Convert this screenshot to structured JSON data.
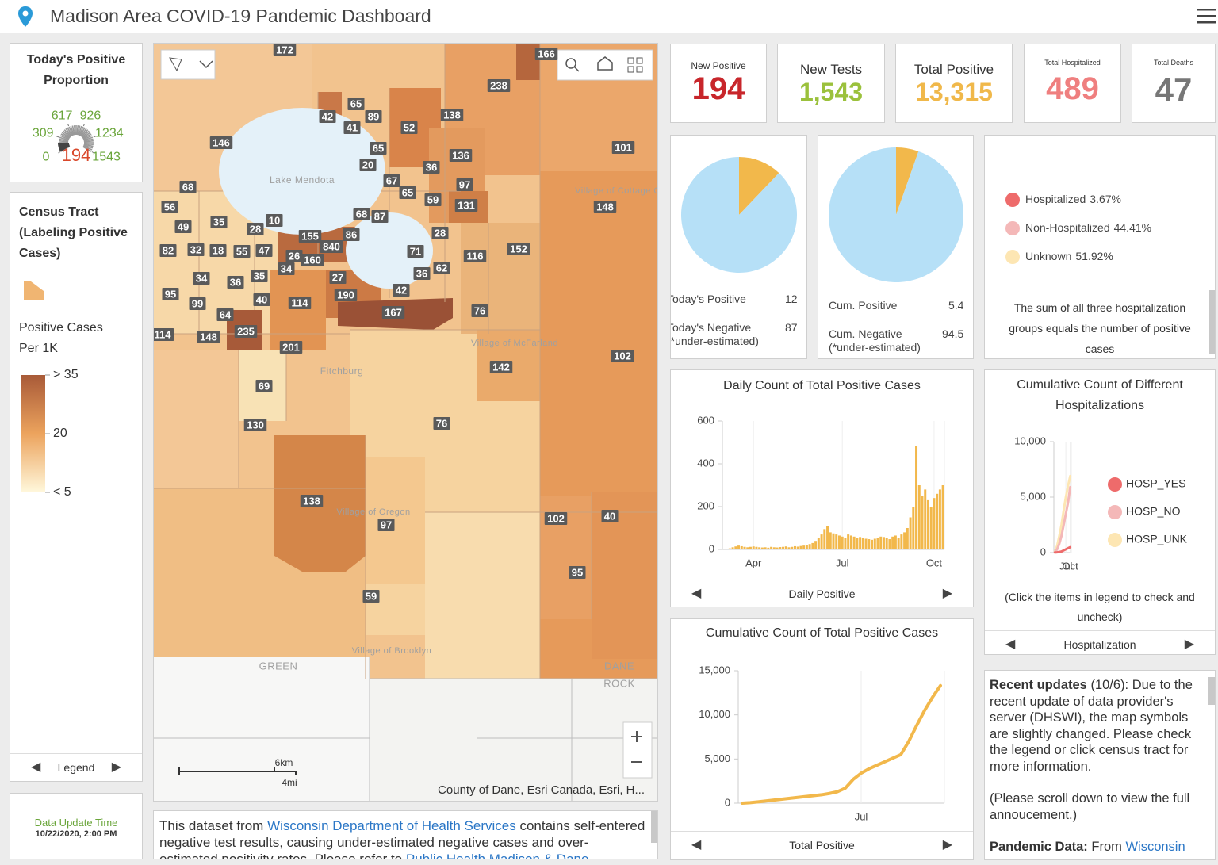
{
  "header": {
    "title": "Madison Area COVID-19 Pandemic Dashboard"
  },
  "gauge": {
    "title": "Today's Positive Proportion",
    "ticks": [
      0,
      309,
      617,
      926,
      1234,
      1543
    ],
    "value": 194,
    "max": 1543
  },
  "legend": {
    "title": "Census Tract (Labeling Positive Cases)",
    "subtitle": "Positive Cases Per 1K",
    "scale": [
      "> 35",
      "20",
      "< 5"
    ],
    "nav": "Legend"
  },
  "update": {
    "label": "Data Update Time",
    "time": "10/22/2020, 2:00 PM"
  },
  "map": {
    "labels": [
      "172",
      "166",
      "238",
      "65",
      "42",
      "89",
      "41",
      "52",
      "138",
      "146",
      "101",
      "65",
      "136",
      "20",
      "36",
      "67",
      "97",
      "68",
      "65",
      "59",
      "131",
      "148",
      "56",
      "68",
      "87",
      "35",
      "10",
      "49",
      "28",
      "155",
      "86",
      "28",
      "840",
      "82",
      "32",
      "18",
      "55",
      "47",
      "26",
      "160",
      "71",
      "152",
      "116",
      "34",
      "27",
      "36",
      "62",
      "34",
      "36",
      "35",
      "42",
      "95",
      "190",
      "99",
      "40",
      "114",
      "167",
      "76",
      "64",
      "114",
      "148",
      "235",
      "201",
      "102",
      "142",
      "69",
      "76",
      "130",
      "138",
      "97",
      "102",
      "40",
      "95",
      "59"
    ],
    "places": [
      "Lake Mendota",
      "Village of Cottage Grove",
      "Village of McFarland",
      "Fitchburg",
      "Village of Oregon",
      "Village of Brooklyn",
      "GREEN",
      "ROCK",
      "DANE"
    ],
    "scale_km": "6km",
    "scale_mi": "4mi",
    "attribution": "County of Dane, Esri Canada, Esri, H..."
  },
  "kpis": [
    {
      "title": "New Positive",
      "value": "194"
    },
    {
      "title": "New Tests",
      "value": "1,543"
    },
    {
      "title": "Total Positive",
      "value": "13,315"
    },
    {
      "title": "Total Hospitalized",
      "value": "489"
    },
    {
      "title": "Total Deaths",
      "value": "47"
    }
  ],
  "hosp_legend": {
    "items": [
      {
        "label": "Hospitalized",
        "value": "3.67%"
      },
      {
        "label": "Non-Hospitalized",
        "value": "44.41%"
      },
      {
        "label": "Unknown",
        "value": "51.92%"
      }
    ],
    "note": "The sum of all three hospitalization groups equals the number of positive cases"
  },
  "nav": {
    "daily": "Daily Positive",
    "total": "Total Positive",
    "hosp": "Hospitalization"
  },
  "hosp_note": "(Click the items in legend to check and uncheck)",
  "info": {
    "segments": [
      "This dataset from ",
      "Wisconsin Department of Health Services",
      " contains self-entered negative test results, causing under-estimated negative cases and over-estimated positivity rates. Please refer to ",
      "Public Health Madison & Dane"
    ]
  },
  "recent": {
    "heading": "Recent updates",
    "body": " (10/6): Due to the recent update of data provider's server (DHSWI), the map symbols are slightly changed. Please check the legend or click census tract for more information.",
    "scroll": "(Please scroll down to view the full annoucement.)",
    "data_heading": "Pandemic Data:",
    "data_body": " From ",
    "data_link": "Wisconsin"
  },
  "chart_data": [
    {
      "type": "bar",
      "title": "Daily Count of Total Positive Cases",
      "color": "#f2b84b",
      "categories": [
        null,
        null,
        null,
        null,
        null,
        null,
        null,
        null,
        null,
        null,
        "Apr",
        null,
        null,
        null,
        null,
        null,
        null,
        null,
        null,
        null,
        null,
        null,
        null,
        null,
        null,
        null,
        null,
        null,
        null,
        null,
        null,
        null,
        null,
        null,
        null,
        null,
        null,
        null,
        null,
        null,
        "Jul",
        null,
        null,
        null,
        null,
        null,
        null,
        null,
        null,
        null,
        null,
        null,
        null,
        null,
        null,
        null,
        null,
        null,
        null,
        null,
        null,
        null,
        null,
        null,
        null,
        null,
        null,
        null,
        null,
        null,
        null,
        "Oct",
        null,
        null,
        null
      ],
      "values": [
        0,
        2,
        5,
        10,
        14,
        18,
        15,
        12,
        10,
        12,
        14,
        12,
        10,
        9,
        10,
        8,
        12,
        10,
        9,
        11,
        12,
        14,
        10,
        12,
        15,
        13,
        16,
        18,
        20,
        25,
        30,
        40,
        55,
        70,
        95,
        110,
        80,
        75,
        70,
        65,
        60,
        55,
        70,
        65,
        60,
        55,
        58,
        52,
        50,
        48,
        45,
        50,
        55,
        60,
        58,
        52,
        48,
        60,
        65,
        55,
        70,
        80,
        100,
        150,
        200,
        485,
        300,
        250,
        280,
        230,
        200,
        240,
        260,
        280,
        300
      ],
      "ylim": [
        0,
        600
      ],
      "yticks": [
        0,
        200,
        400,
        600
      ]
    },
    {
      "type": "line",
      "title": "Cumulative Count of Total Positive Cases",
      "color": "#f2b84b",
      "categories": [
        null,
        null,
        null,
        null,
        null,
        null,
        null,
        null,
        null,
        null,
        null,
        null,
        null,
        null,
        null,
        "Jul",
        null,
        null,
        null,
        null,
        null,
        null,
        null,
        null,
        null,
        null
      ],
      "values": [
        0,
        60,
        150,
        250,
        350,
        450,
        550,
        650,
        750,
        850,
        950,
        1100,
        1300,
        1700,
        2700,
        3400,
        3900,
        4300,
        4700,
        5100,
        5500,
        7000,
        8800,
        10500,
        12000,
        13315
      ],
      "ylim": [
        0,
        15000
      ],
      "yticks": [
        0,
        {
          "value": 5000,
          "label": "5,000"
        },
        {
          "value": 10000,
          "label": "10,000"
        },
        {
          "value": 15000,
          "label": "15,000"
        }
      ]
    },
    {
      "type": "line",
      "title": "Cumulative Count of Different Hospitalizations",
      "categories": [
        null,
        null,
        null,
        null,
        null,
        "Jul",
        null,
        "Oct"
      ],
      "series": [
        {
          "name": "HOSP_YES",
          "color": "#ee6b6b",
          "values": [
            10,
            30,
            60,
            100,
            200,
            300,
            400,
            489
          ]
        },
        {
          "name": "HOSP_NO",
          "color": "#f4b8b8",
          "values": [
            50,
            300,
            800,
            1500,
            2500,
            3500,
            4500,
            5900
          ]
        },
        {
          "name": "HOSP_UNK",
          "color": "#fde6b3",
          "values": [
            100,
            600,
            1500,
            2500,
            3800,
            5000,
            6000,
            6900
          ]
        }
      ],
      "ylim": [
        0,
        10000
      ],
      "yticks": [
        0,
        {
          "value": 5000,
          "label": "5,000"
        },
        {
          "value": 10000,
          "label": "10,000"
        }
      ]
    },
    {
      "type": "pie",
      "labels": [
        "Today's Positive",
        "Today's Negative (*under-estimated)"
      ],
      "values": [
        12,
        87
      ],
      "colors": [
        "#f2b84b",
        "#b6e0f7"
      ]
    },
    {
      "type": "pie",
      "labels": [
        "Cum. Positive",
        "Cum. Negative (*under-estimated)"
      ],
      "values": [
        5.4,
        94.5
      ],
      "colors": [
        "#f2b84b",
        "#b6e0f7"
      ]
    }
  ]
}
